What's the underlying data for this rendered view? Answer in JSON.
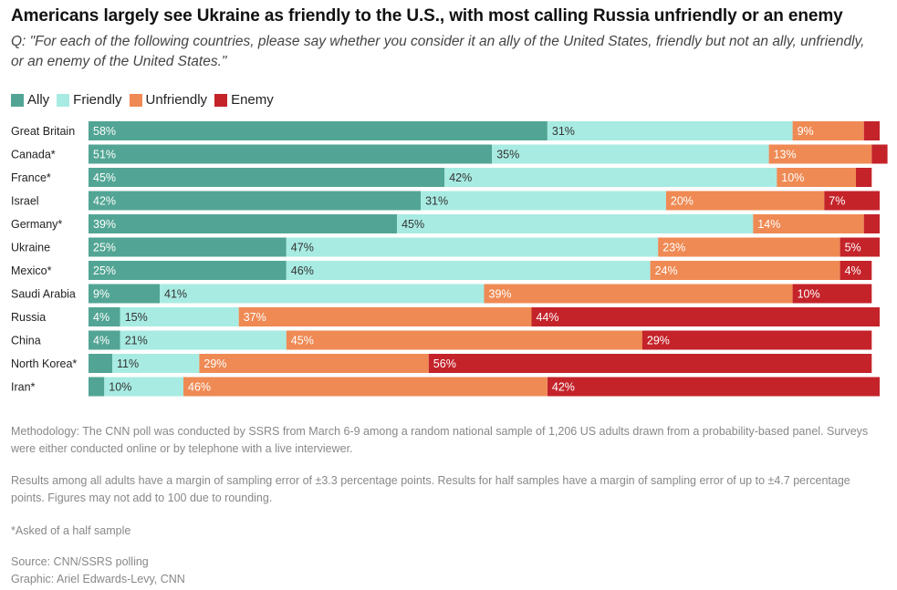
{
  "title": "Americans largely see Ukraine as friendly to the U.S., with most calling Russia unfriendly or an enemy",
  "subtitle": "Q: \"For each of the following countries, please say whether you consider it an ally of the United States, friendly but not an ally, unfriendly, or an enemy of the United States.\"",
  "legend": [
    {
      "label": "Ally",
      "color": "#52a594"
    },
    {
      "label": "Friendly",
      "color": "#a8ebe2"
    },
    {
      "label": "Unfriendly",
      "color": "#ef8a54"
    },
    {
      "label": "Enemy",
      "color": "#c4232a"
    }
  ],
  "chart_data": {
    "type": "bar",
    "orientation": "horizontal",
    "stacked": true,
    "categories": [
      "Great Britain",
      "Canada*",
      "France*",
      "Israel",
      "Germany*",
      "Ukraine",
      "Mexico*",
      "Saudi Arabia",
      "Russia",
      "China",
      "North Korea*",
      "Iran*"
    ],
    "series": [
      {
        "name": "Ally",
        "color": "#52a594",
        "values": [
          58,
          51,
          45,
          42,
          39,
          25,
          25,
          9,
          4,
          4,
          3,
          2
        ],
        "labels": [
          "58%",
          "51%",
          "45%",
          "42%",
          "39%",
          "25%",
          "25%",
          "9%",
          "4%",
          "4%",
          "",
          ""
        ]
      },
      {
        "name": "Friendly",
        "color": "#a8ebe2",
        "values": [
          31,
          35,
          42,
          31,
          45,
          47,
          46,
          41,
          15,
          21,
          11,
          10
        ],
        "labels": [
          "31%",
          "35%",
          "42%",
          "31%",
          "45%",
          "47%",
          "46%",
          "41%",
          "15%",
          "21%",
          "11%",
          "10%"
        ]
      },
      {
        "name": "Unfriendly",
        "color": "#ef8a54",
        "values": [
          9,
          13,
          10,
          20,
          14,
          23,
          24,
          39,
          37,
          45,
          29,
          46
        ],
        "labels": [
          "9%",
          "13%",
          "10%",
          "20%",
          "14%",
          "23%",
          "24%",
          "39%",
          "37%",
          "45%",
          "29%",
          "46%"
        ]
      },
      {
        "name": "Enemy",
        "color": "#c4232a",
        "values": [
          2,
          2,
          2,
          7,
          2,
          5,
          4,
          10,
          44,
          29,
          56,
          42
        ],
        "labels": [
          "",
          "",
          "",
          "7%",
          "",
          "5%",
          "4%",
          "10%",
          "44%",
          "29%",
          "56%",
          "42%"
        ]
      }
    ],
    "xlim": [
      0,
      100
    ]
  },
  "footer": {
    "methodology": "Methodology: The CNN poll was conducted by SSRS from March 6-9 among a random national sample of 1,206 US adults drawn from a probability-based panel. Surveys were either conducted online or by telephone with a live interviewer.",
    "margin": "Results among all adults have a margin of sampling error of ±3.3 percentage points. Results for half samples have a margin of sampling error of up to ±4.7 percentage points. Figures may not add to 100 due to rounding.",
    "asterisk": "*Asked of a half sample",
    "source": "Source: CNN/SSRS polling",
    "graphic": "Graphic: Ariel Edwards-Levy, CNN"
  }
}
